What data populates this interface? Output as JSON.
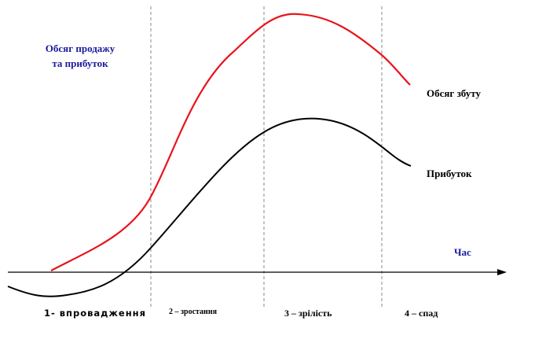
{
  "colors": {
    "sales_curve": "#e8141c",
    "profit_curve": "#000000",
    "axis_label": "#1a1a9c",
    "text": "#000000",
    "divider": "#8a8a8a"
  },
  "labels": {
    "y_axis": "Обсяг продажу та прибуток",
    "x_axis": "Час",
    "sales": "Обсяг збуту",
    "profit": "Прибуток"
  },
  "stages": [
    "1- впровадження",
    "2 – зростання",
    "3 – зрілість",
    "4 – спад"
  ]
}
